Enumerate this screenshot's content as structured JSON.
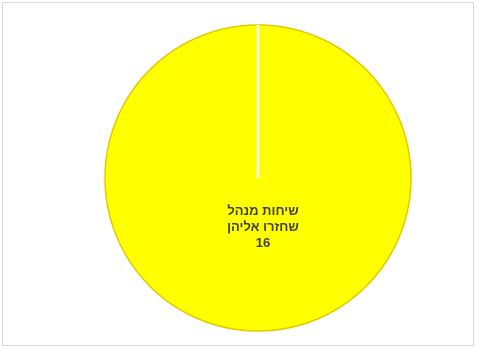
{
  "chart_data": {
    "type": "pie",
    "slices": [
      {
        "label_lines": [
          "שיחות מנהל",
          "שחזרו אליהן"
        ],
        "value": 16,
        "value_label": "16",
        "color": "#ffff00"
      }
    ],
    "slice_border_color": "#e6c800",
    "separator_color": "#ffffff",
    "legend": "none"
  }
}
